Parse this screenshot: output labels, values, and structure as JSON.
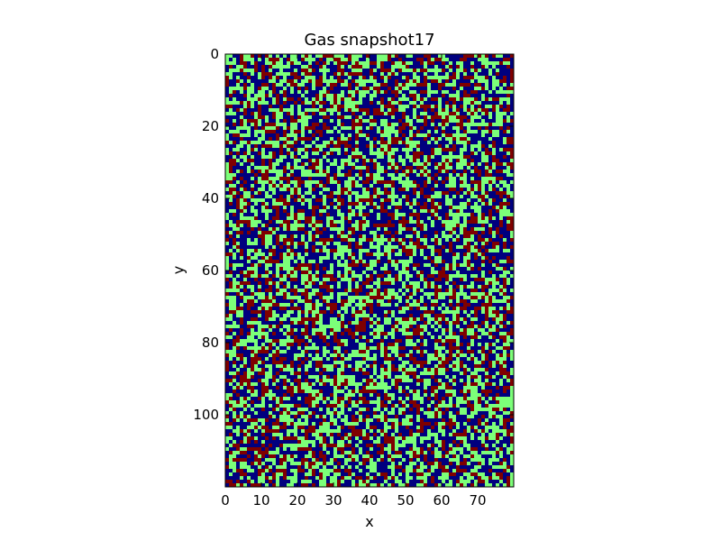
{
  "chart_data": {
    "type": "heatmap",
    "title": "Gas snapshot17",
    "xlabel": "x",
    "ylabel": "y",
    "xlim": [
      0,
      80
    ],
    "ylim": [
      120,
      0
    ],
    "x_ticks": [
      0,
      10,
      20,
      30,
      40,
      50,
      60,
      70
    ],
    "y_ticks": [
      0,
      20,
      40,
      60,
      80,
      100
    ],
    "grid": false,
    "colormap": "jet",
    "states": [
      {
        "value": 0,
        "color": "#00007f"
      },
      {
        "value": 1,
        "color": "#7cff79"
      },
      {
        "value": 2,
        "color": "#7f0000"
      }
    ],
    "state_fractions": [
      0.38,
      0.37,
      0.25
    ],
    "grid_shape": {
      "rows": 120,
      "cols": 80
    }
  }
}
